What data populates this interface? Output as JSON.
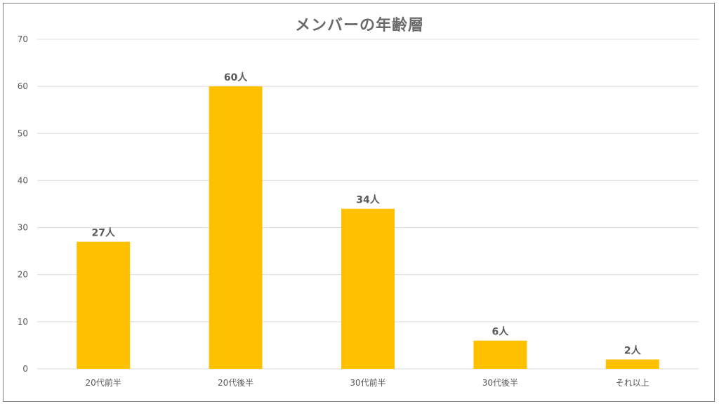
{
  "chart_data": {
    "type": "bar",
    "title": "メンバーの年齢層",
    "categories": [
      "20代前半",
      "20代後半",
      "30代前半",
      "30代後半",
      "それ以上"
    ],
    "values": [
      27,
      60,
      34,
      6,
      2
    ],
    "data_labels": [
      "27人",
      "60人",
      "34人",
      "6人",
      "2人"
    ],
    "xlabel": "",
    "ylabel": "",
    "ylim": [
      0,
      70
    ],
    "yticks": [
      0,
      10,
      20,
      30,
      40,
      50,
      60,
      70
    ],
    "grid": true,
    "legend": "none",
    "bar_color": "#FFC000",
    "grid_color": "#d9d9d9"
  }
}
